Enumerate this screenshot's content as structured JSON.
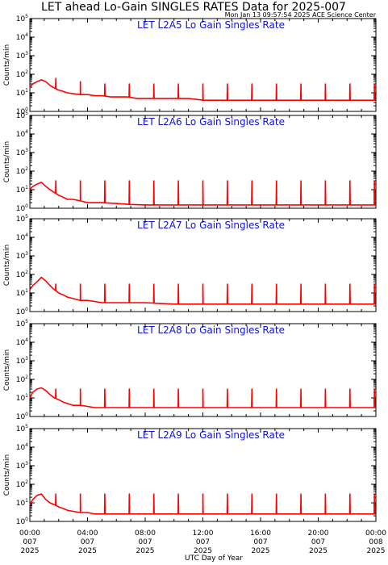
{
  "title": "LET ahead Lo-Gain SINGLES RATES Data for 2025-007",
  "timestamp": "Mon Jan 13 09:57:54 2025 ACE Science Center",
  "chart_data": {
    "type": "line",
    "xlabel": "UTC Day of Year",
    "ylabel": "Counts/min",
    "yscale": "log",
    "ylim": [
      1,
      100000
    ],
    "y_tick_labels": [
      "10^0",
      "10^1",
      "10^2",
      "10^3",
      "10^4",
      "10^5"
    ],
    "xlim_hours": [
      0,
      24
    ],
    "x_ticks": [
      {
        "time": "00:00",
        "day": "007",
        "year": "2025"
      },
      {
        "time": "04:00",
        "day": "007",
        "year": "2025"
      },
      {
        "time": "08:00",
        "day": "007",
        "year": "2025"
      },
      {
        "time": "12:00",
        "day": "007",
        "year": "2025"
      },
      {
        "time": "16:00",
        "day": "007",
        "year": "2025"
      },
      {
        "time": "20:00",
        "day": "007",
        "year": "2025"
      },
      {
        "time": "00:00",
        "day": "008",
        "year": "2025"
      }
    ],
    "panels": [
      {
        "title": "LET L2A5 Lo Gain Singles Rate",
        "x": [
          0,
          0.2,
          0.5,
          0.8,
          1.1,
          1.4,
          1.7,
          2.0,
          2.3,
          2.6,
          3.0,
          3.5,
          4.0,
          4.5,
          5.0,
          5.6,
          6.2,
          6.8,
          7.4,
          8.0,
          9.0,
          10.0,
          11.0,
          12.0,
          13.0,
          14.0,
          15.0,
          16.0,
          17.0,
          18.0,
          19.0,
          20.0,
          21.0,
          22.0,
          23.0,
          24.0
        ],
        "y": [
          20,
          30,
          40,
          50,
          40,
          25,
          18,
          14,
          12,
          10,
          9,
          8,
          8,
          7,
          7,
          6,
          6,
          6,
          5,
          5,
          5,
          5,
          5,
          4,
          4,
          4,
          4,
          4,
          4,
          4,
          4,
          4,
          4,
          4,
          4,
          4
        ],
        "spikes": {
          "times": [
            1.8,
            3.5,
            5.2,
            6.9,
            8.6,
            10.3,
            12.0,
            13.7,
            15.4,
            17.1,
            18.8,
            20.5,
            22.2,
            23.9
          ],
          "peaks": [
            60,
            40,
            30,
            30,
            30,
            30,
            30,
            30,
            30,
            30,
            30,
            30,
            30,
            30
          ]
        }
      },
      {
        "title": "LET L2A6 Lo Gain Singles Rate",
        "x": [
          0,
          0.2,
          0.5,
          0.8,
          1.1,
          1.4,
          1.7,
          2.0,
          2.3,
          2.6,
          3.0,
          3.5,
          4.0,
          4.5,
          5.0,
          6.0,
          7.0,
          8.0,
          10.0,
          12.0,
          14.0,
          16.0,
          18.0,
          20.0,
          22.0,
          24.0
        ],
        "y": [
          10,
          15,
          20,
          25,
          15,
          10,
          7,
          5,
          4,
          3,
          3,
          2.5,
          2,
          2,
          2,
          1.8,
          1.6,
          1.5,
          1.5,
          1.5,
          1.5,
          1.5,
          1.5,
          1.5,
          1.5,
          1.5
        ],
        "spikes": {
          "times": [
            1.8,
            3.5,
            5.2,
            6.9,
            8.6,
            10.3,
            12.0,
            13.7,
            15.4,
            17.1,
            18.8,
            20.5,
            22.2,
            23.9
          ],
          "peaks": [
            30,
            30,
            30,
            30,
            30,
            30,
            30,
            30,
            30,
            30,
            30,
            30,
            30,
            30
          ]
        }
      },
      {
        "title": "LET L2A7 Lo Gain Singles Rate",
        "x": [
          0,
          0.2,
          0.5,
          0.8,
          1.1,
          1.4,
          1.7,
          2.0,
          2.3,
          2.6,
          3.0,
          3.5,
          4.0,
          4.5,
          5.0,
          6.0,
          7.0,
          8.0,
          10.0,
          12.0,
          14.0,
          16.0,
          18.0,
          20.0,
          22.0,
          24.0
        ],
        "y": [
          15,
          25,
          40,
          70,
          45,
          25,
          15,
          10,
          8,
          6,
          5,
          4,
          4,
          3.5,
          3,
          3,
          3,
          3,
          2.5,
          2.5,
          2.5,
          2.5,
          2.5,
          2.5,
          2.5,
          2.5
        ],
        "spikes": {
          "times": [
            1.8,
            3.5,
            5.2,
            6.9,
            8.6,
            10.3,
            12.0,
            13.7,
            15.4,
            17.1,
            18.8,
            20.5,
            22.2,
            23.9
          ],
          "peaks": [
            30,
            30,
            30,
            30,
            30,
            30,
            30,
            30,
            30,
            30,
            30,
            30,
            30,
            30
          ]
        }
      },
      {
        "title": "LET L2A8 Lo Gain Singles Rate",
        "x": [
          0,
          0.2,
          0.5,
          0.8,
          1.1,
          1.4,
          1.7,
          2.0,
          2.3,
          2.6,
          3.0,
          3.5,
          4.0,
          4.5,
          5.0,
          6.0,
          7.0,
          8.0,
          10.0,
          12.0,
          14.0,
          16.0,
          18.0,
          20.0,
          22.0,
          24.0
        ],
        "y": [
          10,
          20,
          30,
          35,
          25,
          15,
          10,
          8,
          6,
          5,
          4,
          4,
          3.5,
          3,
          3,
          3,
          3,
          3,
          3,
          3,
          3,
          3,
          3,
          3,
          3,
          3
        ],
        "spikes": {
          "times": [
            1.8,
            3.5,
            5.2,
            6.9,
            8.6,
            10.3,
            12.0,
            13.7,
            15.4,
            17.1,
            18.8,
            20.5,
            22.2,
            23.9
          ],
          "peaks": [
            30,
            30,
            30,
            30,
            30,
            30,
            30,
            30,
            30,
            30,
            30,
            30,
            30,
            30
          ]
        }
      },
      {
        "title": "LET L2A9 Lo Gain Singles Rate",
        "x": [
          0,
          0.2,
          0.5,
          0.8,
          1.1,
          1.4,
          1.7,
          2.0,
          2.3,
          2.6,
          3.0,
          3.5,
          4.0,
          4.5,
          5.0,
          6.0,
          7.0,
          8.0,
          10.0,
          12.0,
          14.0,
          16.0,
          18.0,
          20.0,
          22.0,
          24.0
        ],
        "y": [
          8,
          15,
          25,
          30,
          15,
          10,
          8,
          6,
          5,
          4,
          3.5,
          3,
          3,
          2.5,
          2.5,
          2.5,
          2.5,
          2.5,
          2.5,
          2.5,
          2.5,
          2.5,
          2.5,
          2.5,
          2.5,
          2.5
        ],
        "spikes": {
          "times": [
            1.8,
            3.5,
            5.2,
            6.9,
            8.6,
            10.3,
            12.0,
            13.7,
            15.4,
            17.1,
            18.8,
            20.5,
            22.2,
            23.9
          ],
          "peaks": [
            30,
            30,
            30,
            30,
            30,
            30,
            30,
            30,
            30,
            30,
            30,
            30,
            30,
            30
          ]
        }
      }
    ]
  }
}
